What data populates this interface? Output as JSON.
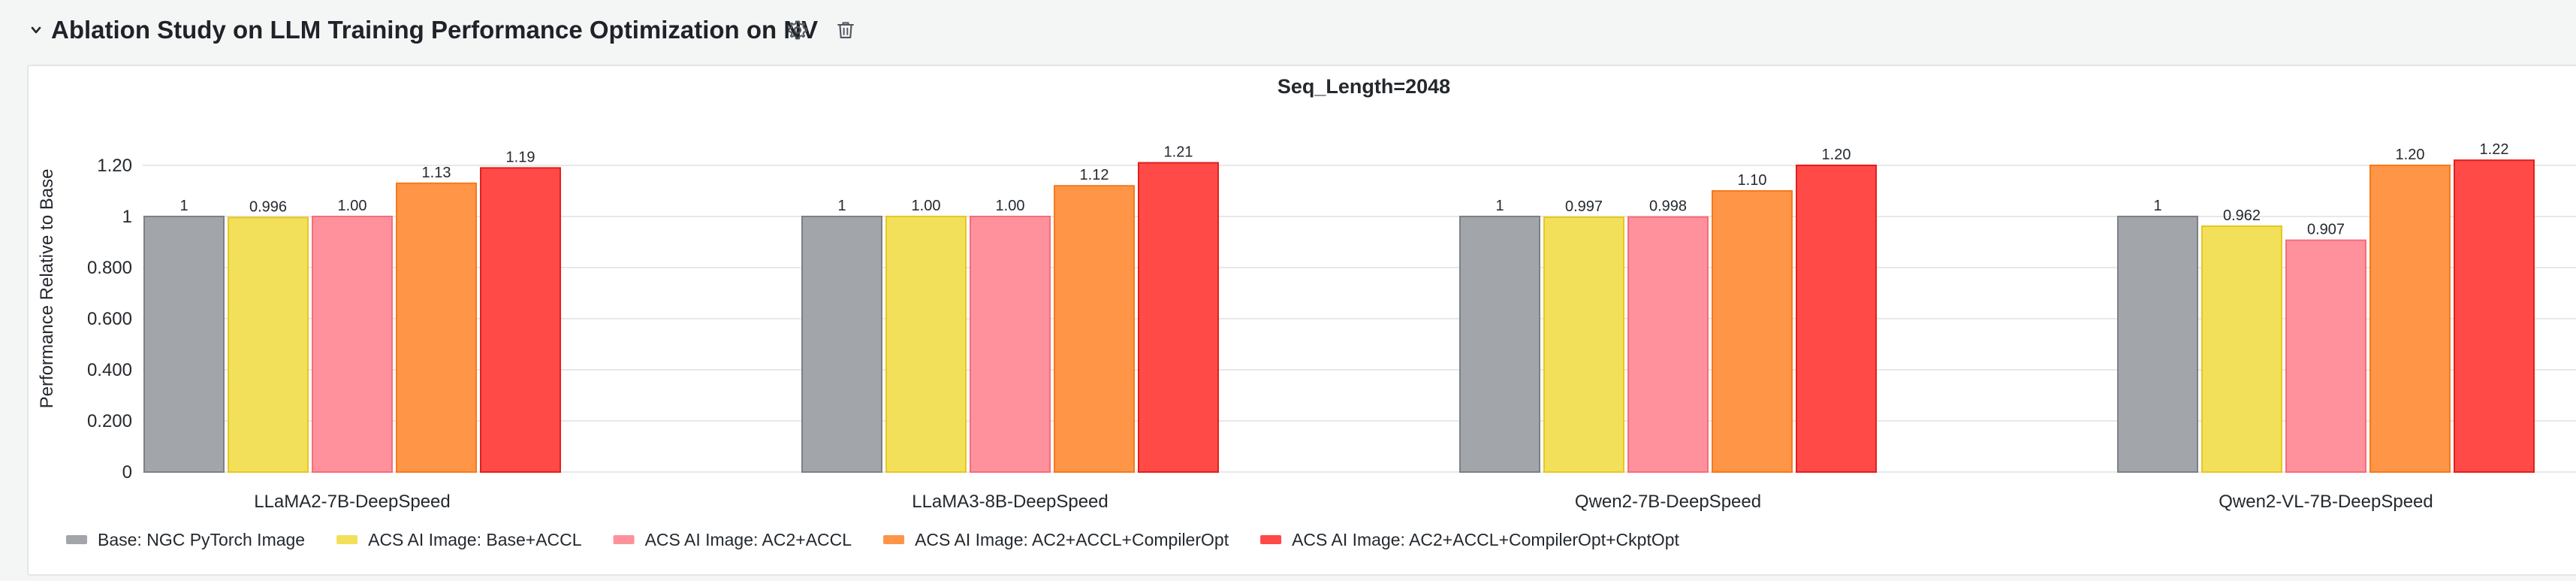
{
  "header": {
    "title": "Ablation Study on LLM Training Performance Optimization on NV",
    "collapse_icon": "chevron-down-icon",
    "settings_icon": "gear-icon",
    "delete_icon": "trash-icon"
  },
  "chart_data": {
    "type": "bar",
    "title": "Seq_Length=2048",
    "xlabel": "",
    "ylabel": "Performance Relative to Base",
    "ylim": [
      0,
      1.25
    ],
    "yticks": [
      {
        "value": 0,
        "label": "0"
      },
      {
        "value": 0.2,
        "label": "0.200"
      },
      {
        "value": 0.4,
        "label": "0.400"
      },
      {
        "value": 0.6,
        "label": "0.600"
      },
      {
        "value": 0.8,
        "label": "0.800"
      },
      {
        "value": 1.0,
        "label": "1"
      },
      {
        "value": 1.2,
        "label": "1.20"
      }
    ],
    "grid": true,
    "legend_position": "bottom-left",
    "categories": [
      "LLaMA2-7B-DeepSpeed",
      "LLaMA3-8B-DeepSpeed",
      "Qwen2-7B-DeepSpeed",
      "Qwen2-VL-7B-DeepSpeed"
    ],
    "series": [
      {
        "name": "Base: NGC PyTorch Image",
        "color": "#a2a5aa",
        "stroke": "#7d8086",
        "values": [
          1,
          1,
          1,
          1
        ],
        "labels": [
          "1",
          "1",
          "1",
          "1"
        ]
      },
      {
        "name": "ACS AI Image: Base+ACCL",
        "color": "#f2e05a",
        "stroke": "#e6c721",
        "values": [
          0.996,
          1.0,
          0.997,
          0.962
        ],
        "labels": [
          "0.996",
          "1.00",
          "0.997",
          "0.962"
        ]
      },
      {
        "name": "ACS AI Image: AC2+ACCL",
        "color": "#ff919c",
        "stroke": "#f56d7c",
        "values": [
          1.0,
          1.0,
          0.998,
          0.907
        ],
        "labels": [
          "1.00",
          "1.00",
          "0.998",
          "0.907"
        ]
      },
      {
        "name": "ACS AI Image: AC2+ACCL+CompilerOpt",
        "color": "#ff9546",
        "stroke": "#f57a1e",
        "values": [
          1.13,
          1.12,
          1.1,
          1.2
        ],
        "labels": [
          "1.13",
          "1.12",
          "1.10",
          "1.20"
        ]
      },
      {
        "name": "ACS AI Image: AC2+ACCL+CompilerOpt+CkptOpt",
        "color": "#ff4a48",
        "stroke": "#e0201e",
        "values": [
          1.19,
          1.21,
          1.2,
          1.22
        ],
        "labels": [
          "1.19",
          "1.21",
          "1.20",
          "1.22"
        ]
      }
    ]
  }
}
